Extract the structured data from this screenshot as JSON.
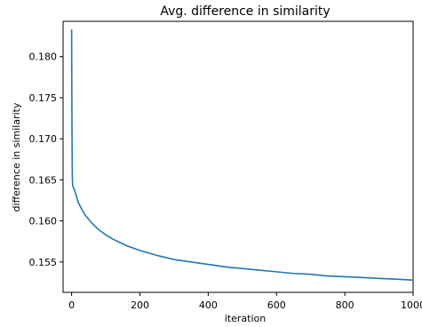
{
  "chart_data": {
    "type": "line",
    "title": "Avg. difference in similarity",
    "xlabel": "iteration",
    "ylabel": "difference in similarity",
    "xlim": [
      -25,
      1000
    ],
    "ylim": [
      0.1513,
      0.1843
    ],
    "xticks": [
      0,
      200,
      400,
      600,
      800,
      1000
    ],
    "xtick_labels": [
      "0",
      "200",
      "400",
      "600",
      "800",
      "1000"
    ],
    "yticks": [
      0.155,
      0.16,
      0.165,
      0.17,
      0.175,
      0.18
    ],
    "ytick_labels": [
      "0.155",
      "0.160",
      "0.165",
      "0.170",
      "0.175",
      "0.180"
    ],
    "grid": false,
    "legend": "none",
    "series": [
      {
        "color": "#1f77b4",
        "x": [
          0,
          1,
          2,
          3,
          5,
          8,
          12,
          16,
          20,
          25,
          30,
          40,
          50,
          60,
          70,
          80,
          90,
          100,
          120,
          140,
          160,
          180,
          200,
          250,
          300,
          350,
          400,
          450,
          500,
          550,
          600,
          650,
          700,
          750,
          800,
          850,
          900,
          950,
          1000
        ],
        "y": [
          0.1833,
          0.172,
          0.1655,
          0.1643,
          0.1641,
          0.1638,
          0.1633,
          0.1627,
          0.1622,
          0.1618,
          0.1614,
          0.1607,
          0.1602,
          0.1597,
          0.1593,
          0.1589,
          0.1586,
          0.1583,
          0.1578,
          0.1574,
          0.157,
          0.1567,
          0.1564,
          0.1558,
          0.1553,
          0.155,
          0.1547,
          0.1544,
          0.1542,
          0.154,
          0.1538,
          0.1536,
          0.1535,
          0.1533,
          0.1532,
          0.1531,
          0.153,
          0.1529,
          0.1528
        ]
      }
    ]
  }
}
